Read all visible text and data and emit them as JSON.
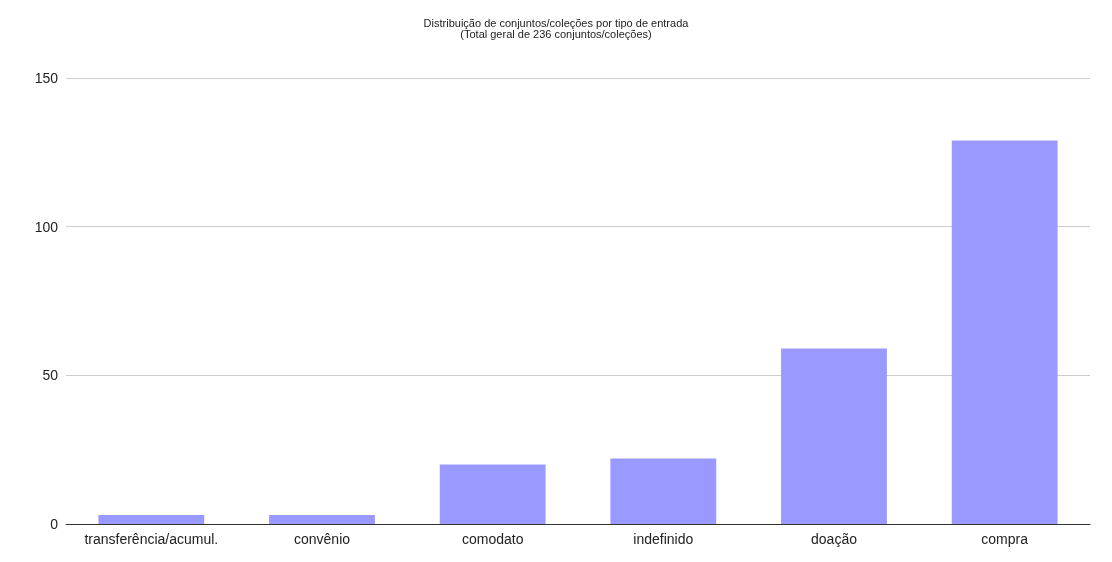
{
  "chart_data": {
    "type": "bar",
    "title": "Distribuição de conjuntos/coleções por tipo de entrada",
    "subtitle": "(Total geral de 236 conjuntos/coleções)",
    "categories": [
      "transferência/acumul.",
      "convênio",
      "comodato",
      "indefinido",
      "doação",
      "compra"
    ],
    "values": [
      3,
      3,
      20,
      22,
      59,
      129
    ],
    "color": "#9999ff",
    "ylim": [
      0,
      150
    ],
    "yticks": [
      0,
      50,
      100,
      150
    ],
    "grid": "y"
  }
}
